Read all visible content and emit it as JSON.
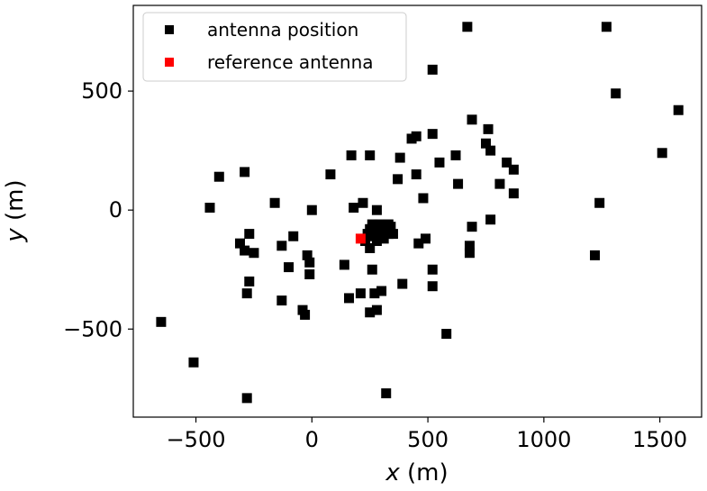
{
  "chart_data": {
    "type": "scatter",
    "xlabel": {
      "var": "x",
      "unit": " (m)"
    },
    "ylabel": {
      "var": "y",
      "unit": " (m)"
    },
    "xlim": [
      -770,
      1680
    ],
    "ylim": [
      -870,
      860
    ],
    "xticks": [
      -500,
      0,
      500,
      1000,
      1500
    ],
    "xtick_labels": [
      "−500",
      "0",
      "500",
      "1000",
      "1500"
    ],
    "yticks": [
      -500,
      0,
      500
    ],
    "ytick_labels": [
      "−500",
      "0",
      "500"
    ],
    "grid": false,
    "legend_position": "upper-left",
    "colors": {
      "antenna": "#000000",
      "reference": "#ff0000"
    },
    "series": [
      {
        "name": "antenna position",
        "color": "#000000",
        "marker": "square",
        "points": [
          [
            670,
            770
          ],
          [
            1270,
            770
          ],
          [
            520,
            590
          ],
          [
            1310,
            490
          ],
          [
            1580,
            420
          ],
          [
            690,
            380
          ],
          [
            760,
            340
          ],
          [
            520,
            320
          ],
          [
            450,
            310
          ],
          [
            430,
            300
          ],
          [
            750,
            280
          ],
          [
            770,
            250
          ],
          [
            1510,
            240
          ],
          [
            250,
            230
          ],
          [
            170,
            230
          ],
          [
            380,
            220
          ],
          [
            550,
            200
          ],
          [
            620,
            230
          ],
          [
            840,
            200
          ],
          [
            870,
            170
          ],
          [
            -290,
            160
          ],
          [
            80,
            150
          ],
          [
            450,
            150
          ],
          [
            -400,
            140
          ],
          [
            370,
            130
          ],
          [
            630,
            110
          ],
          [
            810,
            110
          ],
          [
            870,
            70
          ],
          [
            480,
            50
          ],
          [
            -160,
            30
          ],
          [
            1240,
            30
          ],
          [
            220,
            30
          ],
          [
            -440,
            10
          ],
          [
            0,
            0
          ],
          [
            180,
            10
          ],
          [
            280,
            0
          ],
          [
            770,
            -40
          ],
          [
            -270,
            -100
          ],
          [
            -80,
            -110
          ],
          [
            -310,
            -140
          ],
          [
            -130,
            -150
          ],
          [
            -290,
            -170
          ],
          [
            -250,
            -180
          ],
          [
            460,
            -140
          ],
          [
            490,
            -120
          ],
          [
            690,
            -70
          ],
          [
            680,
            -150
          ],
          [
            680,
            -180
          ],
          [
            1220,
            -190
          ],
          [
            -20,
            -190
          ],
          [
            -10,
            -220
          ],
          [
            140,
            -230
          ],
          [
            250,
            -160
          ],
          [
            260,
            -250
          ],
          [
            -100,
            -240
          ],
          [
            -10,
            -270
          ],
          [
            520,
            -250
          ],
          [
            -270,
            -300
          ],
          [
            390,
            -310
          ],
          [
            520,
            -320
          ],
          [
            -280,
            -350
          ],
          [
            210,
            -350
          ],
          [
            270,
            -350
          ],
          [
            300,
            -340
          ],
          [
            -130,
            -380
          ],
          [
            160,
            -370
          ],
          [
            -40,
            -420
          ],
          [
            -30,
            -440
          ],
          [
            250,
            -430
          ],
          [
            280,
            -420
          ],
          [
            -650,
            -470
          ],
          [
            580,
            -520
          ],
          [
            -510,
            -640
          ],
          [
            -280,
            -790
          ],
          [
            320,
            -770
          ],
          [
            290,
            -60
          ],
          [
            320,
            -80
          ],
          [
            340,
            -70
          ],
          [
            330,
            -100
          ],
          [
            300,
            -110
          ],
          [
            350,
            -100
          ],
          [
            270,
            -90
          ],
          [
            250,
            -80
          ],
          [
            310,
            -120
          ],
          [
            280,
            -130
          ],
          [
            260,
            -60
          ],
          [
            240,
            -100
          ],
          [
            230,
            -130
          ],
          [
            330,
            -60
          ],
          [
            300,
            -90
          ],
          [
            270,
            -110
          ]
        ]
      },
      {
        "name": "reference antenna",
        "color": "#ff0000",
        "marker": "square",
        "points": [
          [
            210,
            -120
          ]
        ]
      }
    ]
  }
}
